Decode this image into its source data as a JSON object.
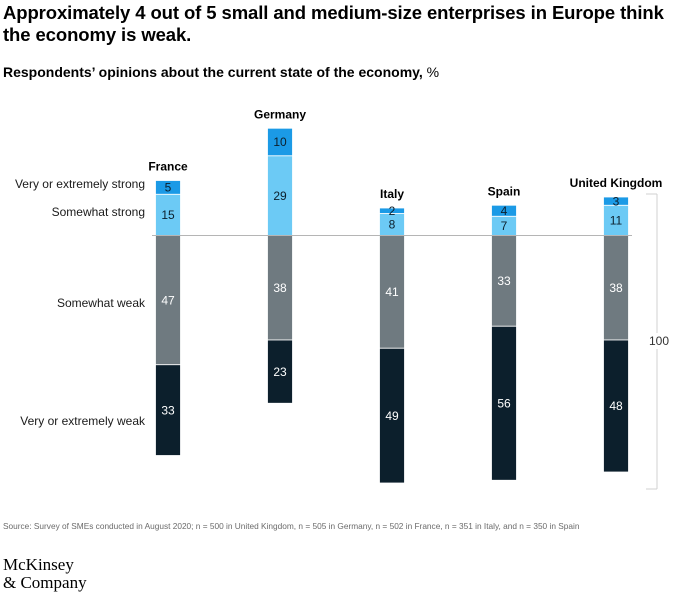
{
  "title": "Approximately 4 out of 5 small and medium-size enterprises in Europe think the economy is weak.",
  "subtitle": "Respondents’ opinions about the current state of the economy,",
  "unit": "%",
  "source": "Source: Survey of SMEs conducted in August 2020; n = 500 in United Kingdom, n = 505 in Germany, n = 502 in France, n = 351 in Italy, and n = 350 in Spain",
  "logo": {
    "line1": "McKinsey",
    "line2": "& Company"
  },
  "colors": {
    "very_strong": "#1b9ae6",
    "somewhat_strong": "#6ccaf5",
    "somewhat_weak": "#6f7a80",
    "very_weak": "#0c1f2c",
    "baseline": "#b5b5b5",
    "bracket": "#d0d0d0"
  },
  "chart_data": {
    "type": "bar",
    "stacked": "diverging",
    "categories": [
      "France",
      "Germany",
      "Italy",
      "Spain",
      "United Kingdom"
    ],
    "series": [
      {
        "name": "Very or extremely strong",
        "values": [
          5,
          10,
          2,
          4,
          3
        ],
        "color": "#1b9ae6",
        "direction": "up"
      },
      {
        "name": "Somewhat strong",
        "values": [
          15,
          29,
          8,
          7,
          11
        ],
        "color": "#6ccaf5",
        "direction": "up"
      },
      {
        "name": "Somewhat weak",
        "values": [
          47,
          38,
          41,
          33,
          38
        ],
        "color": "#6f7a80",
        "direction": "down"
      },
      {
        "name": "Very or extremely weak",
        "values": [
          33,
          23,
          49,
          56,
          48
        ],
        "color": "#0c1f2c",
        "direction": "down"
      }
    ],
    "scale_annotation": "100"
  }
}
